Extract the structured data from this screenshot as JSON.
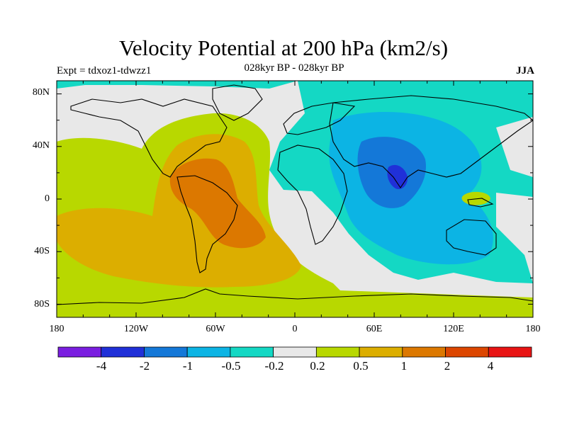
{
  "title": "Velocity Potential at 200 hPa (km2/s)",
  "left_label": "Expt = tdxoz1-tdwzz1",
  "center_label": "028kyr BP - 028kyr BP",
  "right_label": "JJA",
  "colors": {
    "levels": [
      "#7a1ee0",
      "#2030d8",
      "#1478d8",
      "#0cb4e4",
      "#14d8c4",
      "#e8e8e8",
      "#b8d800",
      "#dcae00",
      "#dc7800",
      "#dc4600",
      "#e81414"
    ]
  },
  "chart_data": {
    "type": "heatmap",
    "x_ticks": [
      "180",
      "120W",
      "60W",
      "0",
      "60E",
      "120E",
      "180"
    ],
    "y_ticks": [
      "80N",
      "40N",
      "0",
      "40S",
      "80S"
    ],
    "xlim": [
      -180,
      180
    ],
    "ylim": [
      -90,
      90
    ],
    "colorbar_labels": [
      "-4",
      "-2",
      "-1",
      "-0.5",
      "-0.2",
      "0.2",
      "0.5",
      "1",
      "2",
      "4"
    ],
    "field": "200 hPa velocity potential anomaly, JJA, positive over Atlantic/Americas and negative over Indian Ocean/Asia"
  }
}
